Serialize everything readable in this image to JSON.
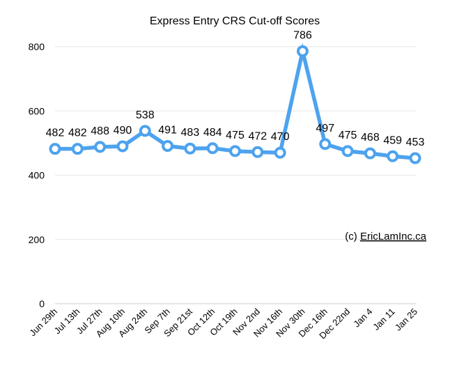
{
  "chart_data": {
    "type": "line",
    "title": "Express Entry CRS Cut-off Scores",
    "xlabel": "",
    "ylabel": "",
    "categories": [
      "Jun 29th",
      "Jul 13th",
      "Jul 27th",
      "Aug 10th",
      "Aug 24th",
      "Sep 7th",
      "Sep 21st",
      "Oct 12th",
      "Oct 19th",
      "Nov 2nd",
      "Nov 16th",
      "Nov 30th",
      "Dec 16th",
      "Dec 22nd",
      "Jan 4",
      "Jan 11",
      "Jan 25"
    ],
    "series": [
      {
        "values": [
          482,
          482,
          488,
          490,
          538,
          491,
          483,
          484,
          475,
          472,
          470,
          786,
          497,
          475,
          468,
          459,
          453
        ],
        "color": "#4da3ee"
      }
    ],
    "ylim": [
      0,
      800
    ],
    "yticks": [
      0,
      200,
      400,
      600,
      800
    ],
    "grid": true,
    "show_data_labels": true,
    "annotation": {
      "prefix": "(c) ",
      "link": "EricLamInc.ca"
    }
  }
}
